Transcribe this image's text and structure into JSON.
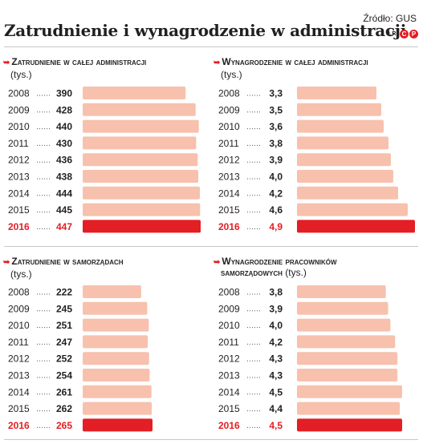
{
  "title": "Zatrudnienie i wynagrodzenie w administracji",
  "source": "Źródło: GUS",
  "logo": {
    "lr": "ŁR",
    "c": "C",
    "p": "P"
  },
  "colors": {
    "bar": "#f7c1ad",
    "highlight": "#e31e24",
    "text": "#231f20",
    "dots": "#555555"
  },
  "chart_data": [
    {
      "type": "bar",
      "title": "Zatrudnienie w całej administracji",
      "unit": "(tys.)",
      "categories": [
        "2008",
        "2009",
        "2010",
        "2011",
        "2012",
        "2013",
        "2014",
        "2015",
        "2016"
      ],
      "values": [
        390,
        428,
        440,
        430,
        436,
        438,
        444,
        445,
        447
      ],
      "labels": [
        "390",
        "428",
        "440",
        "430",
        "436",
        "438",
        "444",
        "445",
        "447"
      ],
      "highlight": "2016",
      "orientation": "horizontal"
    },
    {
      "type": "bar",
      "title": "Wynagrodzenie w całej administracji",
      "unit": "(tys.)",
      "categories": [
        "2008",
        "2009",
        "2010",
        "2011",
        "2012",
        "2013",
        "2014",
        "2015",
        "2016"
      ],
      "values": [
        3.3,
        3.5,
        3.6,
        3.8,
        3.9,
        4.0,
        4.2,
        4.6,
        4.9
      ],
      "labels": [
        "3,3",
        "3,5",
        "3,6",
        "3,8",
        "3,9",
        "4,0",
        "4,2",
        "4,6",
        "4,9"
      ],
      "highlight": "2016",
      "orientation": "horizontal"
    },
    {
      "type": "bar",
      "title": "Zatrudnienie w samorządach",
      "unit": "(tys.)",
      "categories": [
        "2008",
        "2009",
        "2010",
        "2011",
        "2012",
        "2013",
        "2014",
        "2015",
        "2016"
      ],
      "values": [
        222,
        245,
        251,
        247,
        252,
        254,
        261,
        262,
        265
      ],
      "labels": [
        "222",
        "245",
        "251",
        "247",
        "252",
        "254",
        "261",
        "262",
        "265"
      ],
      "highlight": "2016",
      "orientation": "horizontal"
    },
    {
      "type": "bar",
      "title": "Wynagrodzenie pracowników",
      "title_line2": "samorządowych",
      "title_suffix": "(tys.)",
      "categories": [
        "2008",
        "2009",
        "2010",
        "2011",
        "2012",
        "2013",
        "2014",
        "2015",
        "2016"
      ],
      "values": [
        3.8,
        3.9,
        4.0,
        4.2,
        4.3,
        4.3,
        4.5,
        4.4,
        4.5
      ],
      "labels": [
        "3,8",
        "3,9",
        "4,0",
        "4,2",
        "4,3",
        "4,3",
        "4,5",
        "4,4",
        "4,5"
      ],
      "highlight": "2016",
      "orientation": "horizontal"
    }
  ]
}
